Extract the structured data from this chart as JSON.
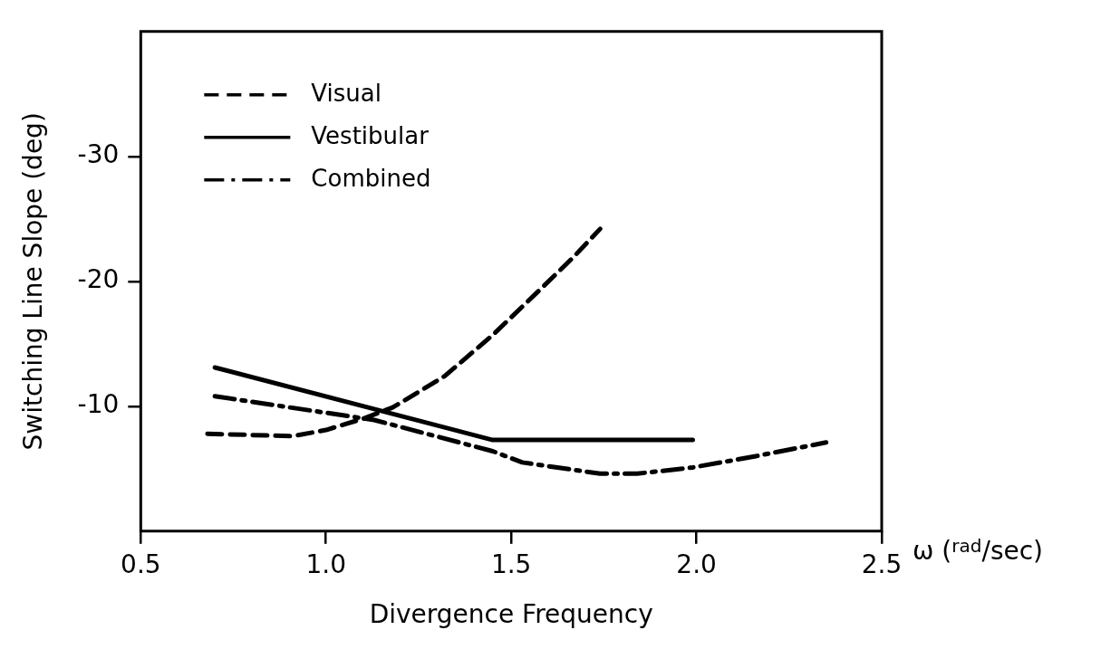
{
  "chart_data": {
    "type": "line",
    "xlabel": "Divergence Frequency",
    "ylabel": "Switching Line Slope (deg)",
    "annotations": [
      "ω ($^{rad}$/sec)"
    ],
    "xlim": [
      0.5,
      2.5
    ],
    "xticks": [
      0.5,
      {
        "value": 1,
        "label": "1.0"
      },
      1.5,
      {
        "value": 2,
        "label": "2.0"
      },
      2.5
    ],
    "ylim": [
      0,
      -40
    ],
    "yticks": [
      -10,
      -20,
      -30
    ],
    "grid": false,
    "legend": "top left",
    "marker": "none",
    "series": [
      {
        "name": "Visual",
        "color": "#000000",
        "line_style": "dashed",
        "x": [
          0.68,
          0.91,
          1.0,
          1.1,
          1.18,
          1.32,
          1.45,
          1.58,
          1.67,
          1.74
        ],
        "values": [
          -7.8,
          -7.6,
          -8.1,
          -9.0,
          -9.9,
          -12.4,
          -15.7,
          -19.4,
          -22.0,
          -24.2
        ]
      },
      {
        "name": "Vestibular",
        "color": "#000000",
        "line_style": "solid",
        "x": [
          0.7,
          1.45,
          1.99
        ],
        "values": [
          -13.1,
          -7.3,
          -7.3
        ]
      },
      {
        "name": "Combined",
        "color": "#000000",
        "line_style": "dashdot",
        "x": [
          0.7,
          1.13,
          1.45,
          1.53,
          1.74,
          1.84,
          1.99,
          2.16,
          2.35
        ],
        "values": [
          -10.8,
          -8.9,
          -6.4,
          -5.5,
          -4.6,
          -4.6,
          -5.1,
          -6.0,
          -7.1
        ]
      }
    ]
  }
}
